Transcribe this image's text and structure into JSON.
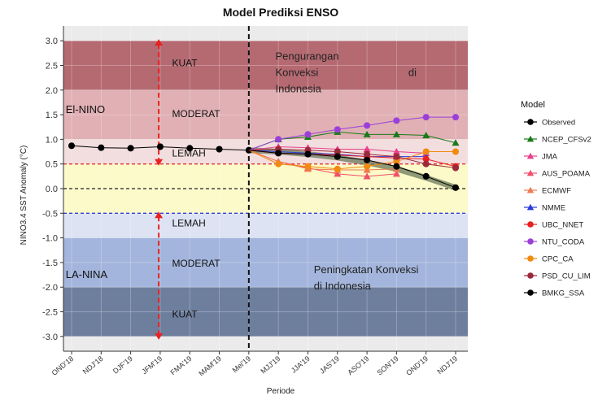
{
  "chart_data": {
    "type": "line",
    "title": "Model Prediksi ENSO",
    "xlabel": "Periode",
    "ylabel": "NINO3.4 SST Anomaly (°C)",
    "ylim": [
      -3.3,
      3.3
    ],
    "yticks": [
      3.0,
      2.5,
      2.0,
      1.5,
      1.0,
      0.5,
      0.0,
      -0.5,
      -1.0,
      -1.5,
      -2.0,
      -2.5,
      -3.0
    ],
    "ytick_labels": [
      "3.0",
      "2.5",
      "2.0",
      "1.5",
      "1.0",
      "0.5",
      "0.0",
      "-0.5",
      "-1.0",
      "-1.5",
      "-2.0",
      "-2.5",
      "-3.0"
    ],
    "categories": [
      "OND'18",
      "NDJ'18",
      "DJF'19",
      "JFM'19",
      "FMA'19",
      "MAM'19",
      "Mei'19",
      "MJJ'19",
      "JJA'19",
      "JAS'19",
      "ASO'19",
      "SON'19",
      "OND'19",
      "NDJ'19"
    ],
    "zones": [
      {
        "from": 2.0,
        "to": 3.0,
        "color": "#b56a72"
      },
      {
        "from": 1.0,
        "to": 2.0,
        "color": "#e0b0b4"
      },
      {
        "from": 0.5,
        "to": 1.0,
        "color": "#f2dede"
      },
      {
        "from": -0.5,
        "to": 0.5,
        "color": "#fcfac8"
      },
      {
        "from": -1.0,
        "to": -0.5,
        "color": "#dde3f2"
      },
      {
        "from": -2.0,
        "to": -1.0,
        "color": "#a3b5dc"
      },
      {
        "from": -3.0,
        "to": -2.0,
        "color": "#6e7f9e"
      }
    ],
    "zone_labels": {
      "kuat_top": "KUAT",
      "moderat_top": "MODERAT",
      "lemah_top": "LEMAH",
      "lemah_bottom": "LEMAH",
      "moderat_bottom": "MODERAT",
      "kuat_bottom": "KUAT",
      "elnino": "El-NINO",
      "lanina": "LA-NINA"
    },
    "annotations": {
      "top": [
        "Pengurangan",
        "Konveksi",
        "di",
        "Indonesia"
      ],
      "bottom": [
        "Peningkatan Konveksi",
        "di Indonesia"
      ]
    },
    "legend_title": "Model",
    "legend_position": "right",
    "series": [
      {
        "name": "Observed",
        "color": "#000000",
        "marker": "circle",
        "x": [
          0,
          1,
          2,
          3,
          4,
          5,
          6
        ],
        "values": [
          0.87,
          0.83,
          0.82,
          0.85,
          0.82,
          0.8,
          0.78
        ]
      },
      {
        "name": "NCEP_CFSv2",
        "color": "#1a7a1a",
        "marker": "triangle",
        "x": [
          6,
          7,
          8,
          9,
          10,
          11,
          12,
          13
        ],
        "values": [
          0.78,
          1.0,
          1.05,
          1.15,
          1.1,
          1.1,
          1.08,
          0.93
        ]
      },
      {
        "name": "JMA",
        "color": "#e8408c",
        "marker": "triangle",
        "x": [
          6,
          7,
          8,
          9,
          10,
          11,
          12
        ],
        "values": [
          0.78,
          0.85,
          0.83,
          0.8,
          0.8,
          0.75,
          0.72
        ]
      },
      {
        "name": "AUS_POAMA",
        "color": "#f0506a",
        "marker": "triangle",
        "x": [
          6,
          7,
          8,
          9,
          10,
          11
        ],
        "values": [
          0.78,
          0.55,
          0.42,
          0.3,
          0.25,
          0.3
        ]
      },
      {
        "name": "ECMWF",
        "color": "#f07a50",
        "marker": "triangle",
        "x": [
          6,
          7,
          8,
          9,
          10,
          11
        ],
        "values": [
          0.78,
          0.55,
          0.4,
          0.38,
          0.38,
          0.4
        ]
      },
      {
        "name": "NMME",
        "color": "#2a3adc",
        "marker": "triangle",
        "x": [
          6,
          7,
          8,
          9,
          10,
          11,
          12
        ],
        "values": [
          0.78,
          0.75,
          0.72,
          0.7,
          0.65,
          0.65,
          0.65
        ]
      },
      {
        "name": "UBC_NNET",
        "color": "#e82020",
        "marker": "circle",
        "x": [
          6,
          7,
          8,
          9,
          10,
          11,
          12,
          13
        ],
        "values": [
          0.78,
          0.72,
          0.7,
          0.68,
          0.65,
          0.62,
          0.6,
          0.45
        ]
      },
      {
        "name": "NTU_CODA",
        "color": "#9a40d8",
        "marker": "circle",
        "x": [
          6,
          7,
          8,
          9,
          10,
          11,
          12,
          13
        ],
        "values": [
          0.78,
          1.0,
          1.1,
          1.2,
          1.28,
          1.38,
          1.45,
          1.45
        ]
      },
      {
        "name": "CPC_CA",
        "color": "#f08a10",
        "marker": "circle",
        "x": [
          6,
          7,
          8,
          9,
          10,
          11,
          12,
          13
        ],
        "values": [
          0.78,
          0.5,
          0.45,
          0.4,
          0.45,
          0.55,
          0.75,
          0.75
        ]
      },
      {
        "name": "PSD_CU_LIM",
        "color": "#9a2a3a",
        "marker": "circle",
        "x": [
          6,
          7,
          8,
          9,
          10,
          11,
          12,
          13
        ],
        "values": [
          0.78,
          0.8,
          0.78,
          0.75,
          0.7,
          0.65,
          0.5,
          0.42
        ]
      },
      {
        "name": "BMKG_SSA",
        "color": "#000000",
        "marker": "circle",
        "x": [
          6,
          7,
          8,
          9,
          10,
          11,
          12,
          13
        ],
        "values": [
          0.78,
          0.72,
          0.7,
          0.65,
          0.58,
          0.45,
          0.25,
          0.02
        ]
      }
    ],
    "ensemble_band": {
      "x": [
        6,
        7,
        8,
        9,
        10,
        11,
        12,
        13
      ],
      "values": [
        0.78,
        0.75,
        0.7,
        0.63,
        0.53,
        0.4,
        0.22,
        0.02
      ],
      "color": "#6a7a5a"
    },
    "ref_lines": [
      {
        "y": 0.5,
        "color": "#e03030",
        "style": "dashed"
      },
      {
        "y": 0.0,
        "color": "#222222",
        "style": "dashed"
      },
      {
        "y": -0.5,
        "color": "#3040d8",
        "style": "dashed"
      }
    ],
    "vline_category": "Mei'19"
  }
}
